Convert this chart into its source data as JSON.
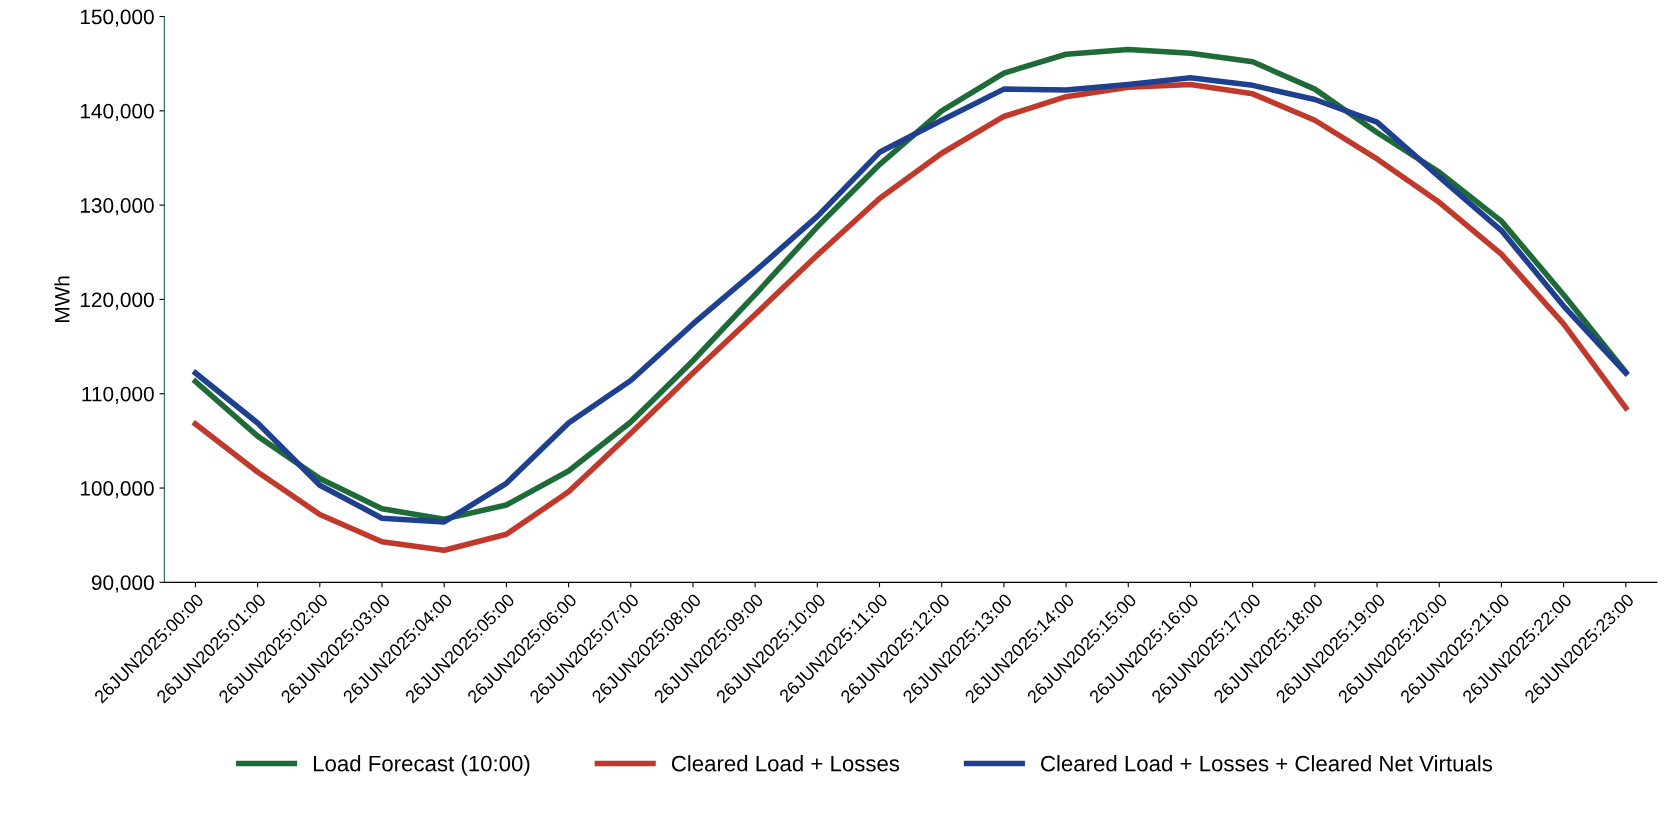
{
  "chart_data": {
    "type": "line",
    "ylabel": "MWh",
    "categories": [
      "26JUN2025:00:00",
      "26JUN2025:01:00",
      "26JUN2025:02:00",
      "26JUN2025:03:00",
      "26JUN2025:04:00",
      "26JUN2025:05:00",
      "26JUN2025:06:00",
      "26JUN2025:07:00",
      "26JUN2025:08:00",
      "26JUN2025:09:00",
      "26JUN2025:10:00",
      "26JUN2025:11:00",
      "26JUN2025:12:00",
      "26JUN2025:13:00",
      "26JUN2025:14:00",
      "26JUN2025:15:00",
      "26JUN2025:16:00",
      "26JUN2025:17:00",
      "26JUN2025:18:00",
      "26JUN2025:19:00",
      "26JUN2025:20:00",
      "26JUN2025:21:00",
      "26JUN2025:22:00",
      "26JUN2025:23:00"
    ],
    "series": [
      {
        "name": "Load Forecast (10:00)",
        "color": "#1e6b38",
        "values": [
          111300,
          105500,
          101000,
          97800,
          96700,
          98200,
          101800,
          107000,
          113500,
          120500,
          127700,
          134300,
          140000,
          144000,
          146000,
          146500,
          146100,
          145200,
          142300,
          137700,
          133500,
          128300,
          120500,
          112300
        ]
      },
      {
        "name": "Cleared Load + Losses",
        "color": "#c0392b",
        "values": [
          106800,
          101700,
          97200,
          94300,
          93400,
          95100,
          99600,
          105800,
          112200,
          118400,
          124700,
          130700,
          135500,
          139400,
          141500,
          142500,
          142800,
          141800,
          139000,
          134900,
          130300,
          124800,
          117400,
          108500
        ]
      },
      {
        "name": "Cleared Load + Losses + Cleared Net Virtuals",
        "color": "#1f3f8f",
        "values": [
          112200,
          106900,
          100300,
          96800,
          96400,
          100500,
          106900,
          111400,
          117400,
          123000,
          128800,
          135600,
          139000,
          142300,
          142200,
          142800,
          143500,
          142700,
          141200,
          138800,
          133000,
          127300,
          119300,
          112200
        ]
      }
    ],
    "ylim": [
      90000,
      150000
    ],
    "yticks": [
      {
        "value": 90000,
        "label": "90,000"
      },
      {
        "value": 100000,
        "label": "100,000"
      },
      {
        "value": 110000,
        "label": "110,000"
      },
      {
        "value": 120000,
        "label": "120,000"
      },
      {
        "value": 130000,
        "label": "130,000"
      },
      {
        "value": 140000,
        "label": "140,000"
      },
      {
        "value": 150000,
        "label": "150,000"
      }
    ],
    "grid": false,
    "legend": "bottom",
    "line_style": "solid",
    "marker": "none"
  }
}
